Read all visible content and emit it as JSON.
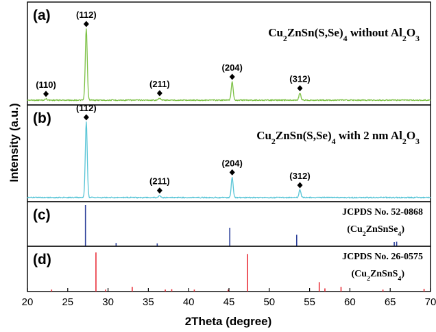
{
  "chart_data": {
    "type": "line",
    "xlabel": "2Theta (degree)",
    "ylabel": "Intensity (a.u.)",
    "xlim": [
      20,
      70
    ],
    "xticks": [
      "20",
      "25",
      "30",
      "35",
      "40",
      "45",
      "50",
      "55",
      "60",
      "65",
      "70"
    ],
    "panels": [
      {
        "letter": "(a)",
        "title_parts": [
          "Cu",
          "2",
          "ZnSn(S,Se)",
          "4",
          " without Al",
          "2",
          "O",
          "3"
        ],
        "color": "#7bc043",
        "kind": "pattern",
        "peaks": [
          {
            "x": 22.3,
            "y": 0.02
          },
          {
            "x": 27.3,
            "y": 1.0
          },
          {
            "x": 36.4,
            "y": 0.03
          },
          {
            "x": 45.4,
            "y": 0.26
          },
          {
            "x": 53.8,
            "y": 0.1
          }
        ],
        "markers": [
          {
            "x": 22.3,
            "label": "(110)"
          },
          {
            "x": 27.3,
            "label": "(112)"
          },
          {
            "x": 36.4,
            "label": "(211)"
          },
          {
            "x": 45.4,
            "label": "(204)"
          },
          {
            "x": 53.8,
            "label": "(312)"
          }
        ]
      },
      {
        "letter": "(b)",
        "title_parts": [
          "Cu",
          "2",
          "ZnSn(S,Se)",
          "4",
          " with 2 nm Al",
          "2",
          "O",
          "3"
        ],
        "color": "#56c4d6",
        "kind": "pattern",
        "peaks": [
          {
            "x": 27.3,
            "y": 1.0
          },
          {
            "x": 36.4,
            "y": 0.03
          },
          {
            "x": 45.4,
            "y": 0.27
          },
          {
            "x": 53.8,
            "y": 0.1
          }
        ],
        "markers": [
          {
            "x": 27.3,
            "label": "(112)"
          },
          {
            "x": 36.4,
            "label": "(211)"
          },
          {
            "x": 45.4,
            "label": "(204)"
          },
          {
            "x": 53.8,
            "label": "(312)"
          }
        ]
      },
      {
        "letter": "(c)",
        "ref_line1": "JCPDS No. 52-0868",
        "ref_line2_parts": [
          "(Cu",
          "2",
          "ZnSnSe",
          "4",
          ")"
        ],
        "color": "#2b3f99",
        "kind": "reference",
        "sticks": [
          {
            "x": 27.2,
            "y": 1.0
          },
          {
            "x": 31.0,
            "y": 0.08
          },
          {
            "x": 36.1,
            "y": 0.07
          },
          {
            "x": 45.1,
            "y": 0.45
          },
          {
            "x": 53.4,
            "y": 0.28
          },
          {
            "x": 65.5,
            "y": 0.1
          },
          {
            "x": 65.8,
            "y": 0.11
          }
        ]
      },
      {
        "letter": "(d)",
        "ref_line1": "JCPDS No. 26-0575",
        "ref_line2_parts": [
          "(Cu",
          "2",
          "ZnSnS",
          "4",
          ")"
        ],
        "color": "#e8313a",
        "kind": "reference",
        "sticks": [
          {
            "x": 23.0,
            "y": 0.05
          },
          {
            "x": 28.5,
            "y": 1.0
          },
          {
            "x": 29.7,
            "y": 0.05
          },
          {
            "x": 33.0,
            "y": 0.12
          },
          {
            "x": 37.1,
            "y": 0.05
          },
          {
            "x": 37.9,
            "y": 0.06
          },
          {
            "x": 40.7,
            "y": 0.05
          },
          {
            "x": 44.9,
            "y": 0.05
          },
          {
            "x": 47.3,
            "y": 0.96
          },
          {
            "x": 56.2,
            "y": 0.24
          },
          {
            "x": 56.9,
            "y": 0.08
          },
          {
            "x": 58.9,
            "y": 0.12
          },
          {
            "x": 64.1,
            "y": 0.05
          },
          {
            "x": 69.2,
            "y": 0.07
          }
        ]
      }
    ]
  }
}
